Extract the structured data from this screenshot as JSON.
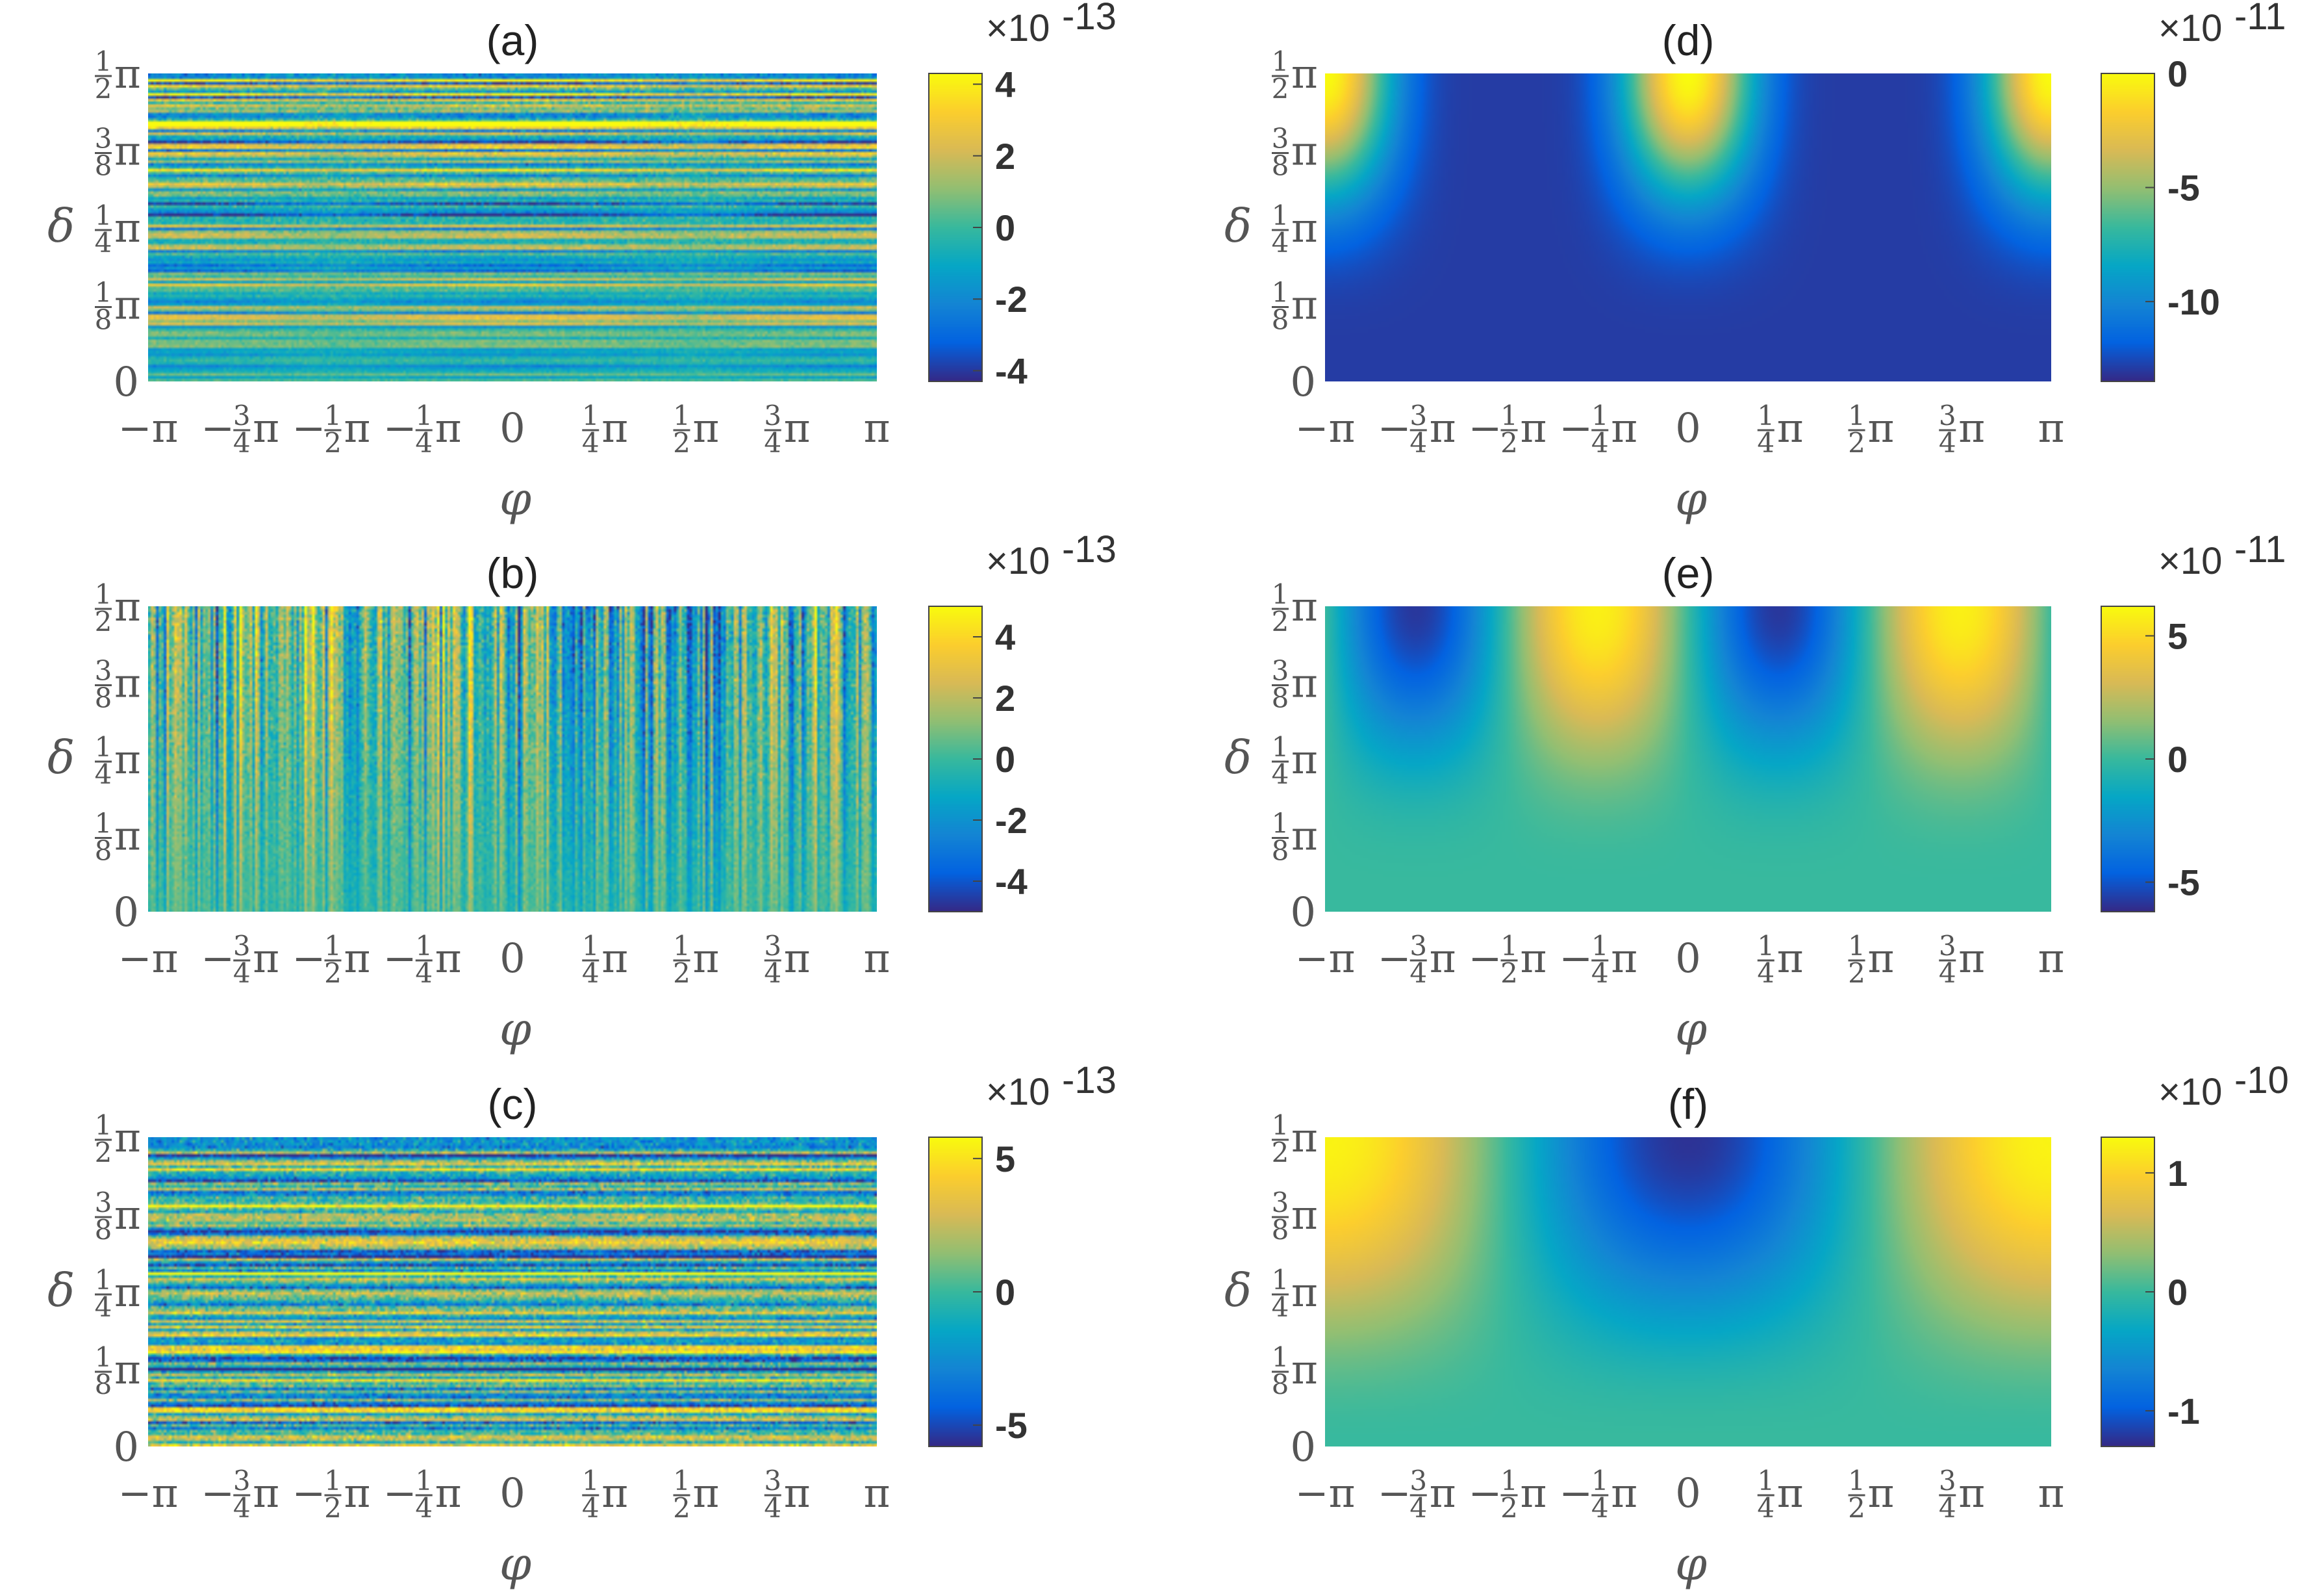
{
  "colors": {
    "parula": [
      "#352a87",
      "#0363e1",
      "#1485d4",
      "#06a7c6",
      "#38b99e",
      "#92bf73",
      "#d9ba56",
      "#fcce2e",
      "#f9fb0e"
    ],
    "text": "#555555",
    "background": "#ffffff"
  },
  "chart_data": [
    {
      "id": "a",
      "type": "heatmap",
      "title": "(a)",
      "xlabel": "φ",
      "ylabel": "δ",
      "xlim": [
        "-π",
        "π"
      ],
      "ylim": [
        0,
        "π/2"
      ],
      "x_ticks": [
        "-π",
        "-3/4 π",
        "-1/2 π",
        "-1/4 π",
        "0",
        "1/4 π",
        "1/2 π",
        "3/4 π",
        "π"
      ],
      "y_ticks": [
        "0",
        "1/8 π",
        "1/4 π",
        "3/8 π",
        "1/2 π"
      ],
      "field": "noise-horizontal",
      "colorbar": {
        "exponent": "×10",
        "power": "-13",
        "min": -4.3,
        "max": 4.3,
        "ticks": [
          4,
          2,
          0,
          -2,
          -4
        ],
        "tick_labels": [
          "4",
          "2",
          "0",
          "-2",
          "-4"
        ]
      }
    },
    {
      "id": "b",
      "type": "heatmap",
      "title": "(b)",
      "xlabel": "φ",
      "ylabel": "δ",
      "xlim": [
        "-π",
        "π"
      ],
      "ylim": [
        0,
        "π/2"
      ],
      "x_ticks": [
        "-π",
        "-3/4 π",
        "-1/2 π",
        "-1/4 π",
        "0",
        "1/4 π",
        "1/2 π",
        "3/4 π",
        "π"
      ],
      "y_ticks": [
        "0",
        "1/8 π",
        "1/4 π",
        "3/8 π",
        "1/2 π"
      ],
      "field": "noise-vertical",
      "colorbar": {
        "exponent": "×10",
        "power": "-13",
        "min": -5.0,
        "max": 5.0,
        "ticks": [
          4,
          2,
          0,
          -2,
          -4
        ],
        "tick_labels": [
          "4",
          "2",
          "0",
          "-2",
          "-4"
        ]
      }
    },
    {
      "id": "c",
      "type": "heatmap",
      "title": "(c)",
      "xlabel": "φ",
      "ylabel": "δ",
      "xlim": [
        "-π",
        "π"
      ],
      "ylim": [
        0,
        "π/2"
      ],
      "x_ticks": [
        "-π",
        "-3/4 π",
        "-1/2 π",
        "-1/4 π",
        "0",
        "1/4 π",
        "1/2 π",
        "3/4 π",
        "π"
      ],
      "y_ticks": [
        "0",
        "1/8 π",
        "1/4 π",
        "3/8 π",
        "1/2 π"
      ],
      "field": "noise-strong",
      "colorbar": {
        "exponent": "×10",
        "power": "-13",
        "min": -5.8,
        "max": 5.8,
        "ticks": [
          5,
          0,
          -5
        ],
        "tick_labels": [
          "5",
          "0",
          "-5"
        ]
      }
    },
    {
      "id": "d",
      "type": "heatmap",
      "title": "(d)",
      "xlabel": "φ",
      "ylabel": "δ",
      "xlim": [
        "-π",
        "π"
      ],
      "ylim": [
        0,
        "π/2"
      ],
      "x_ticks": [
        "-π",
        "-3/4 π",
        "-1/2 π",
        "-1/4 π",
        "0",
        "1/4 π",
        "1/2 π",
        "3/4 π",
        "π"
      ],
      "y_ticks": [
        "0",
        "1/8 π",
        "1/4 π",
        "3/8 π",
        "1/2 π"
      ],
      "field": "smooth-d",
      "colorbar": {
        "exponent": "×10",
        "power": "-11",
        "min": -13.5,
        "max": 0,
        "ticks": [
          0,
          -5,
          -10
        ],
        "tick_labels": [
          "0",
          "-5",
          "-10"
        ]
      }
    },
    {
      "id": "e",
      "type": "heatmap",
      "title": "(e)",
      "xlabel": "φ",
      "ylabel": "δ",
      "xlim": [
        "-π",
        "π"
      ],
      "ylim": [
        0,
        "π/2"
      ],
      "x_ticks": [
        "-π",
        "-3/4 π",
        "-1/2 π",
        "-1/4 π",
        "0",
        "1/4 π",
        "1/2 π",
        "3/4 π",
        "π"
      ],
      "y_ticks": [
        "0",
        "1/8 π",
        "1/4 π",
        "3/8 π",
        "1/2 π"
      ],
      "field": "smooth-e",
      "colorbar": {
        "exponent": "×10",
        "power": "-11",
        "min": -6.2,
        "max": 6.2,
        "ticks": [
          5,
          0,
          -5
        ],
        "tick_labels": [
          "5",
          "0",
          "-5"
        ]
      }
    },
    {
      "id": "f",
      "type": "heatmap",
      "title": "(f)",
      "xlabel": "φ",
      "ylabel": "δ",
      "xlim": [
        "-π",
        "π"
      ],
      "ylim": [
        0,
        "π/2"
      ],
      "x_ticks": [
        "-π",
        "-3/4 π",
        "-1/2 π",
        "-1/4 π",
        "0",
        "1/4 π",
        "1/2 π",
        "3/4 π",
        "π"
      ],
      "y_ticks": [
        "0",
        "1/8 π",
        "1/4 π",
        "3/8 π",
        "1/2 π"
      ],
      "field": "smooth-f",
      "colorbar": {
        "exponent": "×10",
        "power": "-10",
        "min": -1.3,
        "max": 1.3,
        "ticks": [
          1,
          0,
          -1
        ],
        "tick_labels": [
          "1",
          "0",
          "-1"
        ]
      }
    }
  ]
}
